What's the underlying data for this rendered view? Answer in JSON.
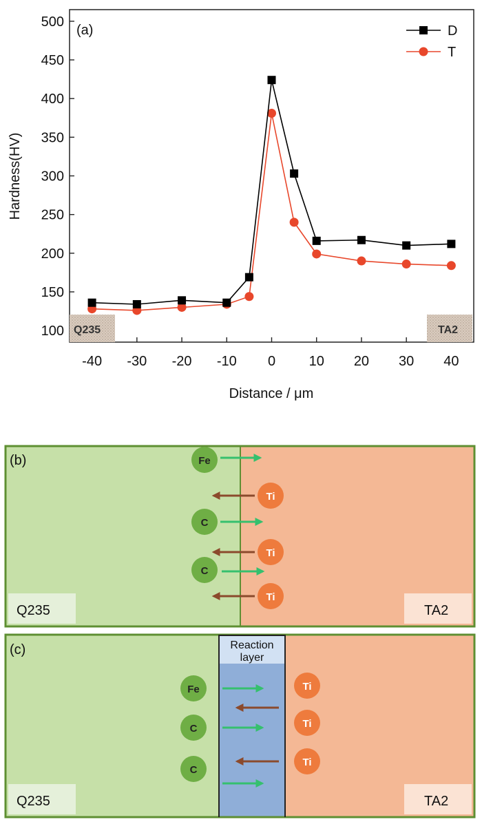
{
  "chart_data": {
    "type": "line",
    "panel_label": "(a)",
    "xlabel": "Distance / μm",
    "ylabel": "Hardness(HV)",
    "xlim": [
      -45,
      45
    ],
    "ylim": [
      85,
      515
    ],
    "x_ticks": [
      -40,
      -30,
      -20,
      -10,
      0,
      10,
      20,
      30,
      40
    ],
    "y_ticks": [
      100,
      150,
      200,
      250,
      300,
      350,
      400,
      450,
      500
    ],
    "legend_position": "top-right",
    "x": [
      -40,
      -30,
      -20,
      -10,
      -5,
      0,
      5,
      10,
      20,
      30,
      40
    ],
    "series": [
      {
        "name": "D",
        "color": "#000000",
        "marker": "square",
        "values": [
          136,
          134,
          139,
          136,
          169,
          424,
          303,
          216,
          217,
          210,
          212
        ]
      },
      {
        "name": "T",
        "color": "#e8472b",
        "marker": "circle",
        "values": [
          128,
          126,
          130,
          134,
          144,
          381,
          240,
          199,
          190,
          186,
          184
        ]
      }
    ],
    "region_labels": {
      "left": "Q235",
      "right": "TA2"
    }
  },
  "diagram_b": {
    "panel_label": "(b)",
    "left_label": "Q235",
    "right_label": "TA2",
    "atoms": [
      {
        "symbol": "Fe",
        "side": "left",
        "arrow": "right"
      },
      {
        "symbol": "Ti",
        "side": "right",
        "arrow": "left"
      },
      {
        "symbol": "C",
        "side": "left",
        "arrow": "right"
      },
      {
        "symbol": "Ti",
        "side": "right",
        "arrow": "left"
      },
      {
        "symbol": "C",
        "side": "left",
        "arrow": "right"
      },
      {
        "symbol": "Ti",
        "side": "right",
        "arrow": "left"
      }
    ]
  },
  "diagram_c": {
    "panel_label": "(c)",
    "left_label": "Q235",
    "right_label": "TA2",
    "layer_label_line1": "Reaction",
    "layer_label_line2": "layer",
    "left_atoms": [
      "Fe",
      "C",
      "C"
    ],
    "right_atoms": [
      "Ti",
      "Ti",
      "Ti"
    ]
  },
  "colors": {
    "steel_fill": "#c6e0a8",
    "steel_border": "#5e8f32",
    "titanium_fill": "#f4b895",
    "titanium_border": "#b36a3c",
    "fe_c_atom": "#6fae45",
    "ti_atom": "#ee7b3d",
    "arrow_in": "#35c06e",
    "arrow_out": "#8b4a2c",
    "reaction_layer": "#8faed8"
  }
}
